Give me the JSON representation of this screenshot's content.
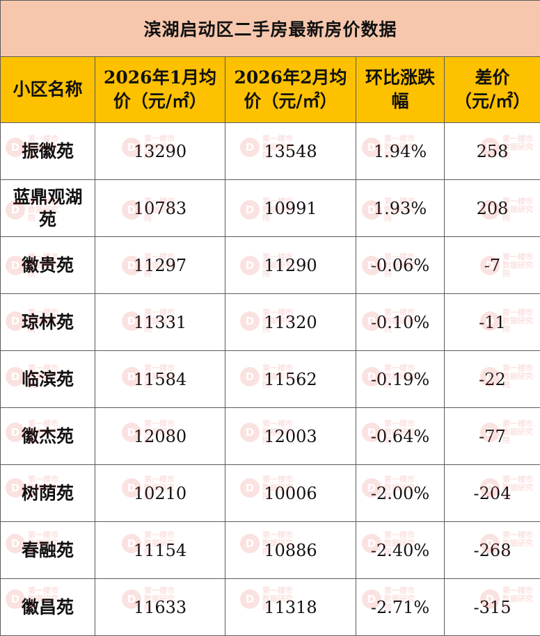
{
  "table": {
    "title": "滨湖启动区二手房最新房价数据",
    "headers": [
      [
        "小区名称"
      ],
      [
        "2026年1月均",
        "价（元/㎡）"
      ],
      [
        "2026年2月均",
        "价（元/㎡）"
      ],
      [
        "环比涨跌",
        "幅"
      ],
      [
        "差价",
        "（元/㎡）"
      ]
    ],
    "rows": [
      {
        "name": [
          "振徽苑"
        ],
        "jan": "13290",
        "feb": "13548",
        "change": "1.94%",
        "diff": "258"
      },
      {
        "name": [
          "蓝鼎观湖",
          "苑"
        ],
        "jan": "10783",
        "feb": "10991",
        "change": "1.93%",
        "diff": "208"
      },
      {
        "name": [
          "徽贵苑"
        ],
        "jan": "11297",
        "feb": "11290",
        "change": "-0.06%",
        "diff": "-7"
      },
      {
        "name": [
          "琼林苑"
        ],
        "jan": "11331",
        "feb": "11320",
        "change": "-0.10%",
        "diff": "-11"
      },
      {
        "name": [
          "临滨苑"
        ],
        "jan": "11584",
        "feb": "11562",
        "change": "-0.19%",
        "diff": "-22"
      },
      {
        "name": [
          "徽杰苑"
        ],
        "jan": "12080",
        "feb": "12003",
        "change": "-0.64%",
        "diff": "-77"
      },
      {
        "name": [
          "树荫苑"
        ],
        "jan": "10210",
        "feb": "10006",
        "change": "-2.00%",
        "diff": "-204"
      },
      {
        "name": [
          "春融苑"
        ],
        "jan": "11154",
        "feb": "10886",
        "change": "-2.40%",
        "diff": "-268"
      },
      {
        "name": [
          "徽昌苑"
        ],
        "jan": "11633",
        "feb": "11318",
        "change": "-2.71%",
        "diff": "-315"
      }
    ]
  },
  "watermark": {
    "logo": "D",
    "lines": [
      "第一楼市",
      "数据研究院"
    ]
  },
  "colors": {
    "title_bg": "#f6c7ad",
    "header_bg": "#fdc100",
    "border": "#5a5a5a",
    "watermark": "#e0261b"
  }
}
